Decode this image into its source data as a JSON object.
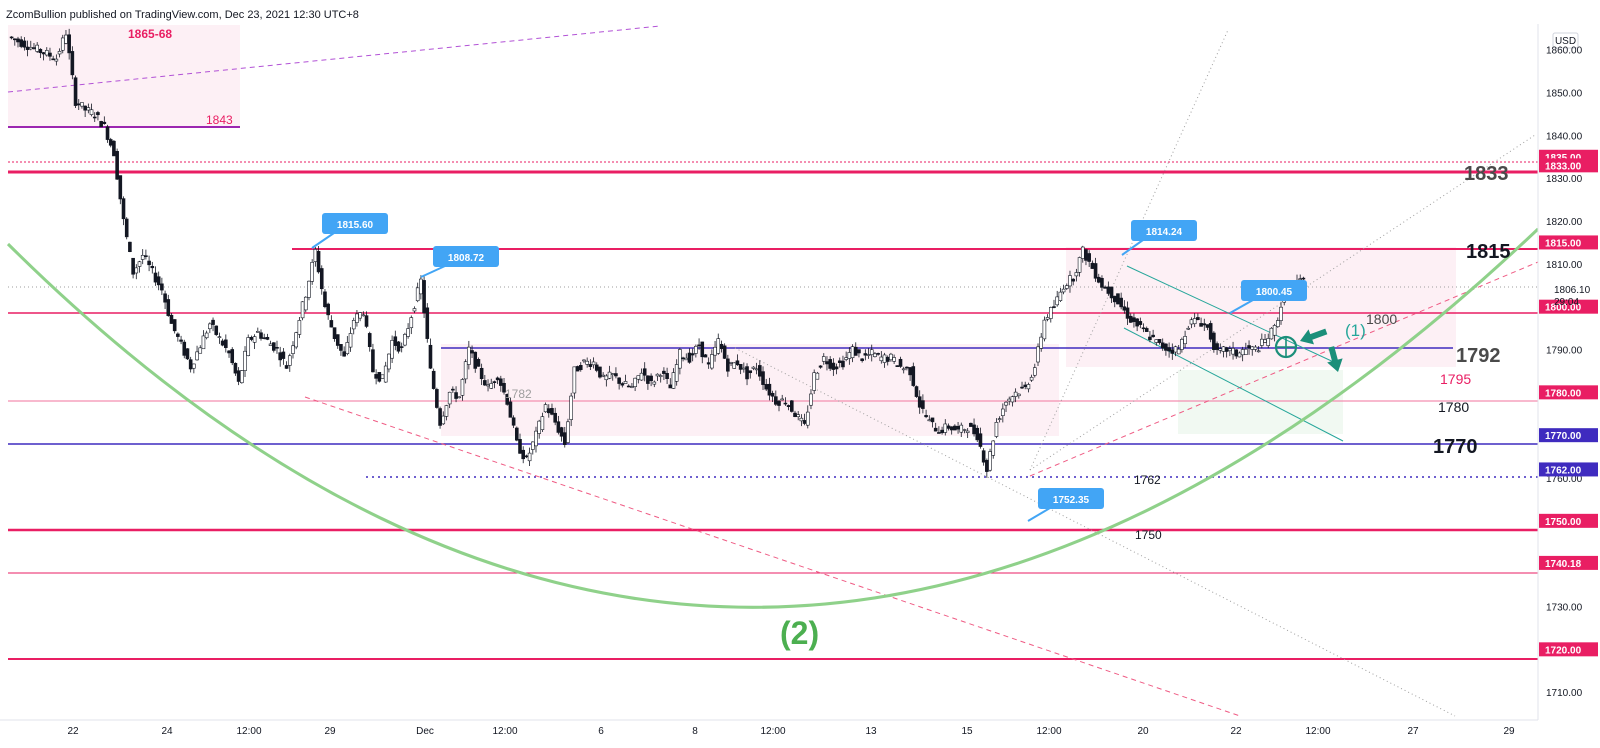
{
  "header": {
    "publisher": "ZcomBullion published on TradingView.com, Dec 23, 2021 12:30 UTC+8"
  },
  "currency": "USD",
  "current_price": {
    "value": "1806.10",
    "countdown": "29:04"
  },
  "colors": {
    "red": "#e91e63",
    "violet": "#3f2bbf",
    "purple": "#9c27b0",
    "green": "#8fd18a",
    "teal": "#1b8f7a",
    "callout": "#42a5f5",
    "pink_zone": "#fce4ec",
    "candle_up": "#ffffff",
    "candle_down": "#131722"
  },
  "chart_data": {
    "type": "candlestick",
    "title": "",
    "ylim": [
      1703.5,
      1866
    ],
    "x_ticks": [
      "22",
      "24",
      "12:00",
      "29",
      "Dec",
      "12:00",
      "6",
      "8",
      "12:00",
      "13",
      "15",
      "12:00",
      "20",
      "22",
      "12:00",
      "27",
      "29"
    ],
    "y_ticks": [
      "1860.00",
      "1850.00",
      "1840.00",
      "1830.00",
      "1820.00",
      "1810.00",
      "1800.00",
      "1790.00",
      "1780.00",
      "1770.00",
      "1760.00",
      "1750.00",
      "1740.00",
      "1730.00",
      "1720.00",
      "1710.00"
    ],
    "price_path": [
      [
        0,
        1863
      ],
      [
        3,
        1860
      ],
      [
        5,
        1858
      ],
      [
        6,
        1864
      ],
      [
        7,
        1848
      ],
      [
        8,
        1846
      ],
      [
        9,
        1845
      ],
      [
        10,
        1842
      ],
      [
        11,
        1836
      ],
      [
        12,
        1820
      ],
      [
        13,
        1808
      ],
      [
        14,
        1812
      ],
      [
        16,
        1804
      ],
      [
        17,
        1796
      ],
      [
        19,
        1786
      ],
      [
        20,
        1791
      ],
      [
        21,
        1796
      ],
      [
        23,
        1789
      ],
      [
        24,
        1782
      ],
      [
        25,
        1792
      ],
      [
        26,
        1794
      ],
      [
        28,
        1790
      ],
      [
        29,
        1786
      ],
      [
        31,
        1803
      ],
      [
        32,
        1813
      ],
      [
        33,
        1800
      ],
      [
        34,
        1793
      ],
      [
        35,
        1788
      ],
      [
        36,
        1797
      ],
      [
        37,
        1799
      ],
      [
        38,
        1785
      ],
      [
        39,
        1783
      ],
      [
        40,
        1792
      ],
      [
        41,
        1790
      ],
      [
        42,
        1798
      ],
      [
        43,
        1806
      ],
      [
        44,
        1785
      ],
      [
        45,
        1773
      ],
      [
        46,
        1780
      ],
      [
        47,
        1779
      ],
      [
        48,
        1790
      ],
      [
        49,
        1785
      ],
      [
        50,
        1781
      ],
      [
        51,
        1784
      ],
      [
        52,
        1778
      ],
      [
        53,
        1768
      ],
      [
        54,
        1764
      ],
      [
        55,
        1770
      ],
      [
        56,
        1777
      ],
      [
        57,
        1773
      ],
      [
        58,
        1768
      ],
      [
        59,
        1785
      ],
      [
        60,
        1787
      ],
      [
        61,
        1787
      ],
      [
        62,
        1783
      ],
      [
        63,
        1784
      ],
      [
        64,
        1782
      ],
      [
        65,
        1781
      ],
      [
        66,
        1785
      ],
      [
        67,
        1782
      ],
      [
        68,
        1785
      ],
      [
        69,
        1781
      ],
      [
        70,
        1789
      ],
      [
        71,
        1788
      ],
      [
        72,
        1791
      ],
      [
        73,
        1786
      ],
      [
        74,
        1792
      ],
      [
        75,
        1786
      ],
      [
        76,
        1787
      ],
      [
        77,
        1784
      ],
      [
        78,
        1786
      ],
      [
        79,
        1781
      ],
      [
        80,
        1778
      ],
      [
        81,
        1778
      ],
      [
        82,
        1775
      ],
      [
        83,
        1772
      ],
      [
        84,
        1784
      ],
      [
        85,
        1788
      ],
      [
        86,
        1786
      ],
      [
        87,
        1787
      ],
      [
        88,
        1790
      ],
      [
        89,
        1788
      ],
      [
        90,
        1789
      ],
      [
        91,
        1788
      ],
      [
        92,
        1788
      ],
      [
        93,
        1786
      ],
      [
        94,
        1785
      ],
      [
        95,
        1777
      ],
      [
        96,
        1773
      ],
      [
        97,
        1771
      ],
      [
        98,
        1772
      ],
      [
        99,
        1771
      ],
      [
        100,
        1772
      ],
      [
        101,
        1770
      ],
      [
        102,
        1762
      ],
      [
        103,
        1773
      ],
      [
        104,
        1778
      ],
      [
        105,
        1780
      ],
      [
        106,
        1781
      ],
      [
        107,
        1786
      ],
      [
        108,
        1797
      ],
      [
        109,
        1800
      ],
      [
        110,
        1805
      ],
      [
        111,
        1807
      ],
      [
        112,
        1813
      ],
      [
        113,
        1809
      ],
      [
        114,
        1805
      ],
      [
        115,
        1803
      ],
      [
        116,
        1800
      ],
      [
        117,
        1797
      ],
      [
        118,
        1795
      ],
      [
        119,
        1793
      ],
      [
        120,
        1791
      ],
      [
        121,
        1790
      ],
      [
        122,
        1790
      ],
      [
        123,
        1796
      ],
      [
        124,
        1797
      ],
      [
        125,
        1795
      ],
      [
        126,
        1789
      ],
      [
        127,
        1790
      ],
      [
        128,
        1789
      ],
      [
        129,
        1790
      ],
      [
        130,
        1790
      ],
      [
        131,
        1792
      ],
      [
        132,
        1795
      ],
      [
        133,
        1803
      ],
      [
        134,
        1805
      ],
      [
        135,
        1806
      ]
    ],
    "swing_highs": [
      {
        "label": "1815.60",
        "value": 1815.6
      },
      {
        "label": "1808.72",
        "value": 1808.72
      },
      {
        "label": "1814.24",
        "value": 1814.24
      },
      {
        "label": "1800.45",
        "value": 1800.45
      }
    ],
    "swing_lows": [
      {
        "label": "1752.35",
        "value": 1752.35
      }
    ],
    "horizontal_levels": [
      {
        "name": "level-1865-68",
        "value": 1865,
        "color": "red",
        "tag": ""
      },
      {
        "name": "level-1843",
        "value": 1843,
        "color": "purple",
        "tag": ""
      },
      {
        "name": "level-1835",
        "value": 1835,
        "color": "red",
        "tag": "1835.00"
      },
      {
        "name": "level-1833",
        "value": 1833,
        "color": "red",
        "tag": "1833.00"
      },
      {
        "name": "level-1815",
        "value": 1815,
        "color": "red",
        "tag": "1815.00"
      },
      {
        "name": "level-1800",
        "value": 1800,
        "color": "red",
        "tag": "1800.00"
      },
      {
        "name": "level-1792",
        "value": 1792,
        "color": "violet",
        "tag": ""
      },
      {
        "name": "level-1780",
        "value": 1780,
        "color": "red",
        "tag": "1780.00"
      },
      {
        "name": "level-1770",
        "value": 1770,
        "color": "violet",
        "tag": "1770.00"
      },
      {
        "name": "level-1762",
        "value": 1762,
        "color": "violet",
        "tag": "1762.00"
      },
      {
        "name": "level-1750",
        "value": 1750,
        "color": "red",
        "tag": "1750.00"
      },
      {
        "name": "level-1740",
        "value": 1740.18,
        "color": "red",
        "tag": "1740.18"
      },
      {
        "name": "level-1720",
        "value": 1720,
        "color": "red",
        "tag": "1720.00"
      }
    ],
    "annotations": {
      "zone_1865_68": "1865-68",
      "lvl_1843": "1843",
      "lvl_1833": "1833",
      "lvl_1815": "1815",
      "lvl_1800": "1800",
      "lvl_1792": "1792",
      "lvl_1795": "1795",
      "lvl_1782": "1782",
      "lvl_1780": "1780",
      "lvl_1770": "1770",
      "lvl_1762": "1762",
      "lvl_1750": "1750",
      "wave_1": "(1)",
      "wave_2": "(2)"
    }
  }
}
